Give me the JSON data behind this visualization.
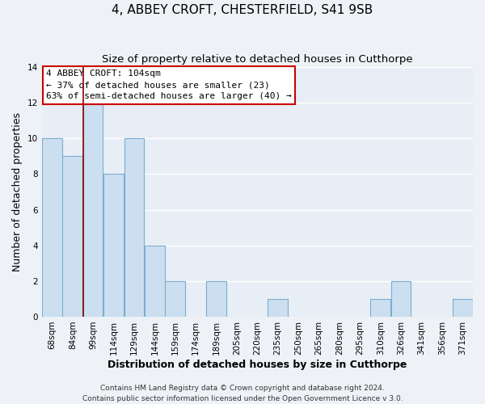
{
  "title": "4, ABBEY CROFT, CHESTERFIELD, S41 9SB",
  "subtitle": "Size of property relative to detached houses in Cutthorpe",
  "xlabel": "Distribution of detached houses by size in Cutthorpe",
  "ylabel": "Number of detached properties",
  "categories": [
    "68sqm",
    "84sqm",
    "99sqm",
    "114sqm",
    "129sqm",
    "144sqm",
    "159sqm",
    "174sqm",
    "189sqm",
    "205sqm",
    "220sqm",
    "235sqm",
    "250sqm",
    "265sqm",
    "280sqm",
    "295sqm",
    "310sqm",
    "326sqm",
    "341sqm",
    "356sqm",
    "371sqm"
  ],
  "values": [
    10,
    9,
    12,
    8,
    10,
    4,
    2,
    0,
    2,
    0,
    0,
    1,
    0,
    0,
    0,
    0,
    1,
    2,
    0,
    0,
    1
  ],
  "bar_color": "#ccdff0",
  "bar_edge_color": "#7aaecf",
  "vline_x_index": 2,
  "vline_color": "#8b0000",
  "ylim": [
    0,
    14
  ],
  "yticks": [
    0,
    2,
    4,
    6,
    8,
    10,
    12,
    14
  ],
  "annotation_title": "4 ABBEY CROFT: 104sqm",
  "annotation_line1": "← 37% of detached houses are smaller (23)",
  "annotation_line2": "63% of semi-detached houses are larger (40) →",
  "annotation_box_color": "#ffffff",
  "annotation_box_edgecolor": "#cc0000",
  "footer_line1": "Contains HM Land Registry data © Crown copyright and database right 2024.",
  "footer_line2": "Contains public sector information licensed under the Open Government Licence v 3.0.",
  "background_color": "#eef2f7",
  "plot_bg_color": "#e8eef5",
  "grid_color": "#ffffff",
  "title_fontsize": 11,
  "subtitle_fontsize": 9.5,
  "axis_label_fontsize": 9,
  "tick_fontsize": 7.5,
  "annotation_fontsize": 8,
  "footer_fontsize": 6.5
}
